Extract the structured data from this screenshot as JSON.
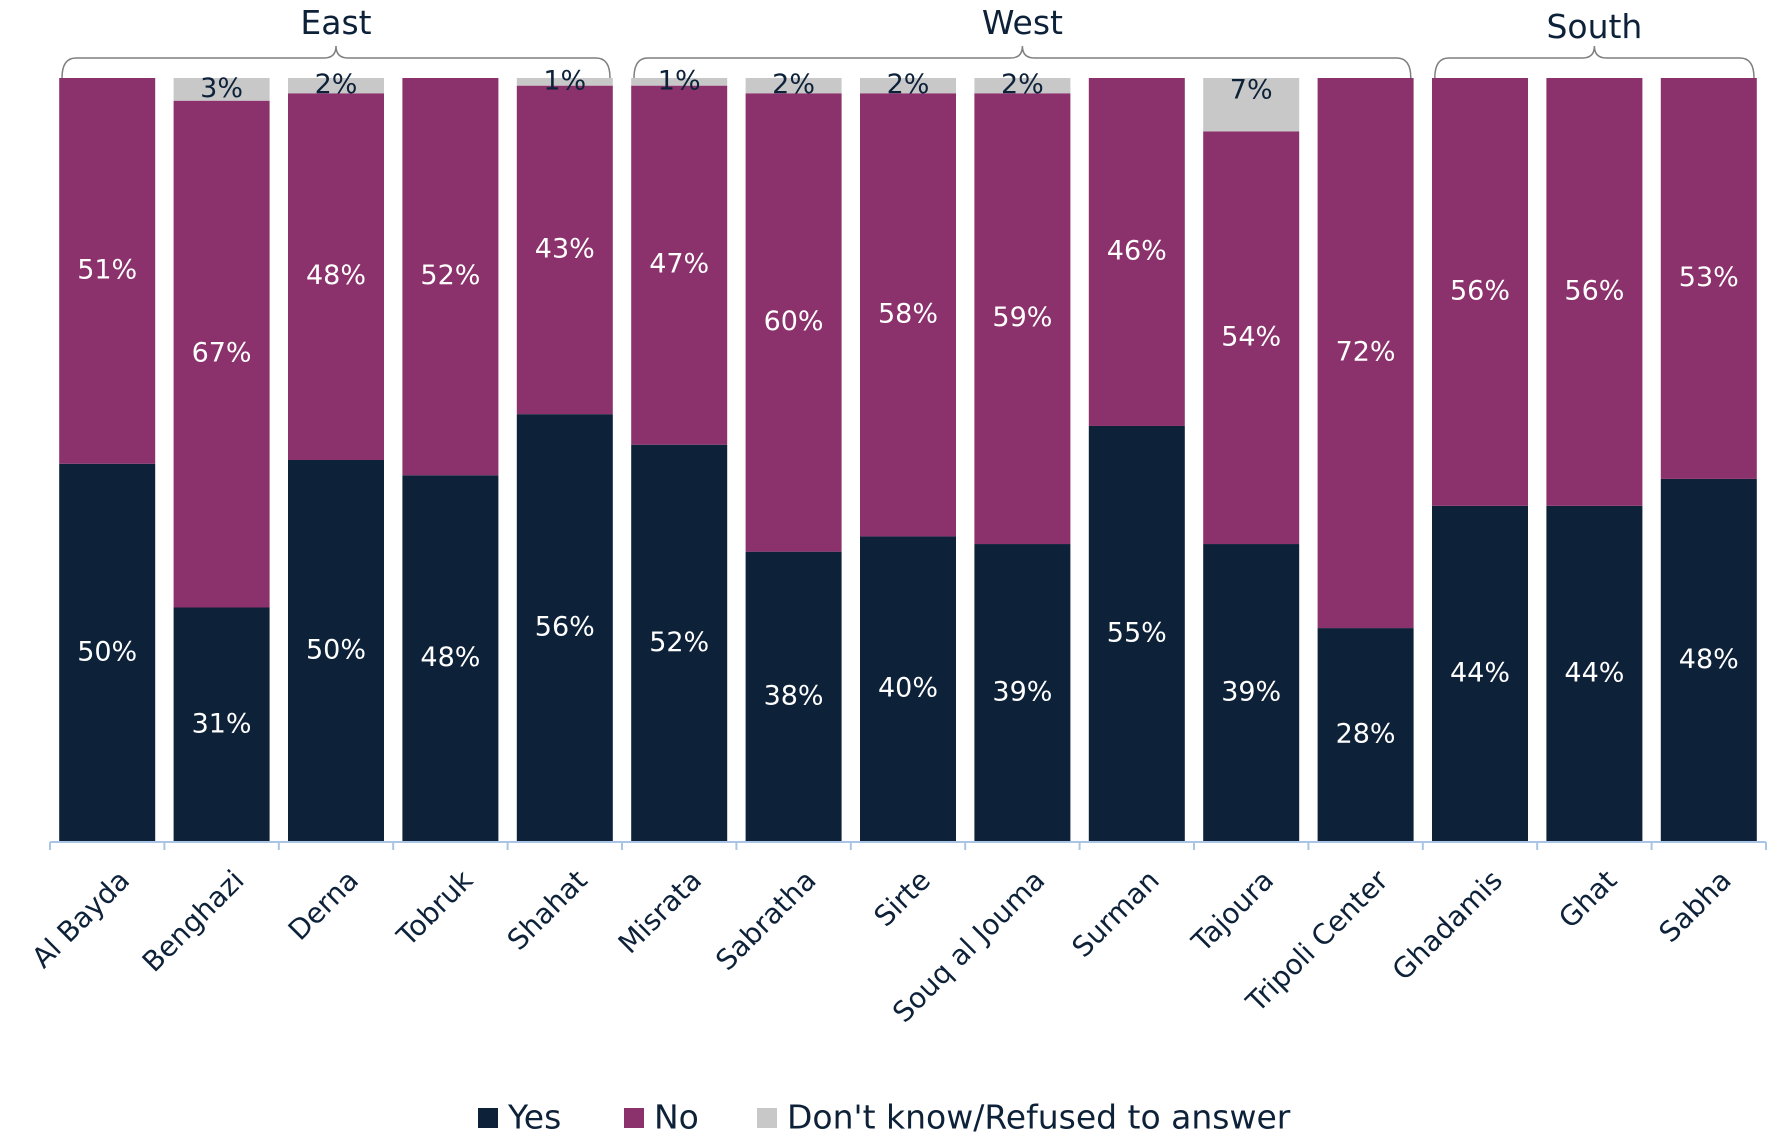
{
  "chart_data": {
    "type": "bar",
    "stacked": true,
    "normalized": true,
    "categories": [
      "Al Bayda",
      "Benghazi",
      "Derna",
      "Tobruk",
      "Shahat",
      "Misrata",
      "Sabratha",
      "Sirte",
      "Souq al Jouma",
      "Surman",
      "Tajoura",
      "Tripoli Center",
      "Ghadamis",
      "Ghat",
      "Sabha"
    ],
    "groups": [
      {
        "label": "East",
        "from": 0,
        "to": 4
      },
      {
        "label": "West",
        "from": 5,
        "to": 11
      },
      {
        "label": "South",
        "from": 12,
        "to": 14
      }
    ],
    "series": [
      {
        "name": "Yes",
        "color": "#0d2139",
        "label_color": "#ffffff",
        "values": [
          50,
          31,
          50,
          48,
          56,
          52,
          38,
          40,
          39,
          55,
          39,
          28,
          44,
          44,
          48
        ],
        "labels": [
          "50%",
          "31%",
          "50%",
          "48%",
          "56%",
          "52%",
          "38%",
          "40%",
          "39%",
          "55%",
          "39%",
          "28%",
          "44%",
          "44%",
          "48%"
        ]
      },
      {
        "name": "No",
        "color": "#8b316b",
        "label_color": "#ffffff",
        "values": [
          51,
          67,
          48,
          52,
          43,
          47,
          60,
          58,
          59,
          46,
          54,
          72,
          56,
          56,
          53
        ],
        "labels": [
          "51%",
          "67%",
          "48%",
          "52%",
          "43%",
          "47%",
          "60%",
          "58%",
          "59%",
          "46%",
          "54%",
          "72%",
          "56%",
          "56%",
          "53%"
        ]
      },
      {
        "name": "Don't know/Refused to answer",
        "color": "#c8c8c8",
        "label_color": "#0d2139",
        "values": [
          0,
          3,
          2,
          0,
          1,
          1,
          2,
          2,
          2,
          0,
          7,
          0,
          0,
          0,
          0
        ],
        "labels": [
          "",
          "3%",
          "2%",
          "",
          "1%",
          "1%",
          "2%",
          "2%",
          "2%",
          "",
          "7%",
          "",
          "",
          "",
          ""
        ]
      }
    ],
    "legend_position": "bottom",
    "grid": false,
    "axis_color": "#a9c4e4"
  }
}
